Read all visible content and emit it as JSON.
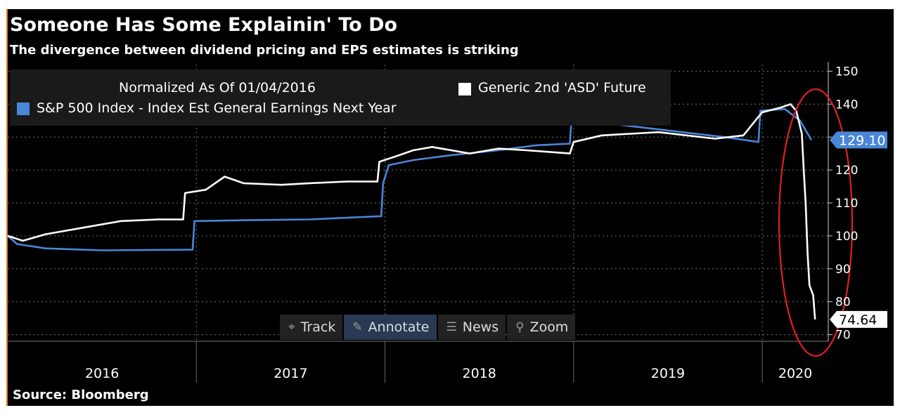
{
  "header": {
    "title": "Someone Has Some Explainin' To Do",
    "subtitle": "The divergence between dividend pricing and EPS estimates is striking",
    "source": "Source: Bloomberg"
  },
  "legend": {
    "normalized": "Normalized As Of 01/04/2016",
    "white_series": "Generic 2nd 'ASD' Future",
    "blue_series": "S&P 500 Index - Index Est General Earnings Next Year"
  },
  "toolbar": {
    "track": "Track",
    "track_icon": "crosshair-icon",
    "annotate": "Annotate",
    "annotate_icon": "pencil-icon",
    "news": "News",
    "news_icon": "news-icon",
    "zoom": "Zoom",
    "zoom_icon": "magnifier-icon"
  },
  "colors": {
    "background": "#000000",
    "blue_series": "#4a86d8",
    "white_series": "#ffffff",
    "highlight_ellipse": "#e02020"
  },
  "chart_data": {
    "type": "line",
    "title": "Someone Has Some Explainin' To Do",
    "subtitle": "The divergence between dividend pricing and EPS estimates is striking",
    "xlabel": "",
    "ylabel": "",
    "x_tick_labels": [
      "2016",
      "2017",
      "2018",
      "2019",
      "2020"
    ],
    "y_ticks": [
      70,
      80,
      90,
      100,
      110,
      120,
      130,
      140,
      150
    ],
    "ylim": [
      68,
      152
    ],
    "xlim": [
      2016.0,
      2020.35
    ],
    "grid": true,
    "legend_position": "top",
    "series": [
      {
        "name": "S&P 500 Index - Index Est General Earnings Next Year",
        "color": "#4a86d8",
        "last_value": "129.10",
        "points": [
          [
            2016.0,
            100
          ],
          [
            2016.05,
            97.5
          ],
          [
            2016.2,
            96.2
          ],
          [
            2016.5,
            95.6
          ],
          [
            2016.98,
            95.8
          ],
          [
            2016.99,
            104.5
          ],
          [
            2017.3,
            104.8
          ],
          [
            2017.6,
            105.0
          ],
          [
            2017.98,
            106.0
          ],
          [
            2017.99,
            116
          ],
          [
            2018.02,
            121.5
          ],
          [
            2018.15,
            123
          ],
          [
            2018.35,
            124.5
          ],
          [
            2018.6,
            126
          ],
          [
            2018.8,
            127.5
          ],
          [
            2018.98,
            128
          ],
          [
            2018.99,
            136.5
          ],
          [
            2019.2,
            134
          ],
          [
            2019.5,
            132
          ],
          [
            2019.8,
            130
          ],
          [
            2019.98,
            128.5
          ],
          [
            2019.99,
            138
          ],
          [
            2020.12,
            138.5
          ],
          [
            2020.2,
            135
          ],
          [
            2020.26,
            129.1
          ]
        ]
      },
      {
        "name": "Generic 2nd 'ASD' Future",
        "color": "#ffffff",
        "last_value": "74.64",
        "points": [
          [
            2016.0,
            100
          ],
          [
            2016.08,
            98.5
          ],
          [
            2016.2,
            100.5
          ],
          [
            2016.4,
            102.5
          ],
          [
            2016.6,
            104.5
          ],
          [
            2016.8,
            105
          ],
          [
            2016.93,
            105
          ],
          [
            2016.94,
            113
          ],
          [
            2017.05,
            114
          ],
          [
            2017.15,
            118
          ],
          [
            2017.25,
            116
          ],
          [
            2017.45,
            115.5
          ],
          [
            2017.6,
            116
          ],
          [
            2017.8,
            116.5
          ],
          [
            2017.96,
            116.5
          ],
          [
            2017.97,
            122.5
          ],
          [
            2018.05,
            124
          ],
          [
            2018.15,
            126
          ],
          [
            2018.25,
            127
          ],
          [
            2018.45,
            125
          ],
          [
            2018.6,
            126.5
          ],
          [
            2018.75,
            126
          ],
          [
            2018.98,
            125
          ],
          [
            2019.0,
            128.5
          ],
          [
            2019.15,
            130.5
          ],
          [
            2019.3,
            131
          ],
          [
            2019.45,
            131.5
          ],
          [
            2019.6,
            130.5
          ],
          [
            2019.75,
            129.5
          ],
          [
            2019.9,
            130.5
          ],
          [
            2019.97,
            135.5
          ],
          [
            2020.0,
            137.5
          ],
          [
            2020.1,
            139
          ],
          [
            2020.15,
            140
          ],
          [
            2020.18,
            138
          ],
          [
            2020.21,
            131
          ],
          [
            2020.22,
            120
          ],
          [
            2020.23,
            110
          ],
          [
            2020.24,
            95
          ],
          [
            2020.25,
            85
          ],
          [
            2020.27,
            82
          ],
          [
            2020.28,
            74.64
          ]
        ]
      }
    ]
  }
}
